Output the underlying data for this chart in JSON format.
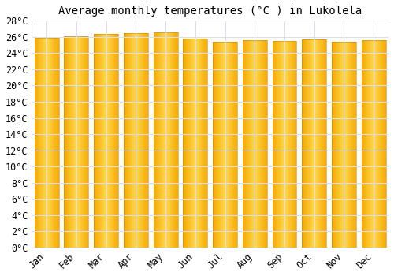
{
  "title": "Average monthly temperatures (°C ) in Lukolela",
  "months": [
    "Jan",
    "Feb",
    "Mar",
    "Apr",
    "May",
    "Jun",
    "Jul",
    "Aug",
    "Sep",
    "Oct",
    "Nov",
    "Dec"
  ],
  "temperatures": [
    25.9,
    26.1,
    26.4,
    26.5,
    26.6,
    25.8,
    25.4,
    25.6,
    25.5,
    25.7,
    25.4,
    25.6
  ],
  "ylim": [
    0,
    28
  ],
  "ytick_step": 2,
  "bar_color_center": "#FFD84D",
  "bar_color_edge": "#F5A800",
  "background_color": "#FFFFFF",
  "plot_bg_color": "#FFFFFF",
  "grid_color": "#DDDDEE",
  "title_fontsize": 10,
  "tick_fontsize": 8.5,
  "bar_width": 0.82
}
